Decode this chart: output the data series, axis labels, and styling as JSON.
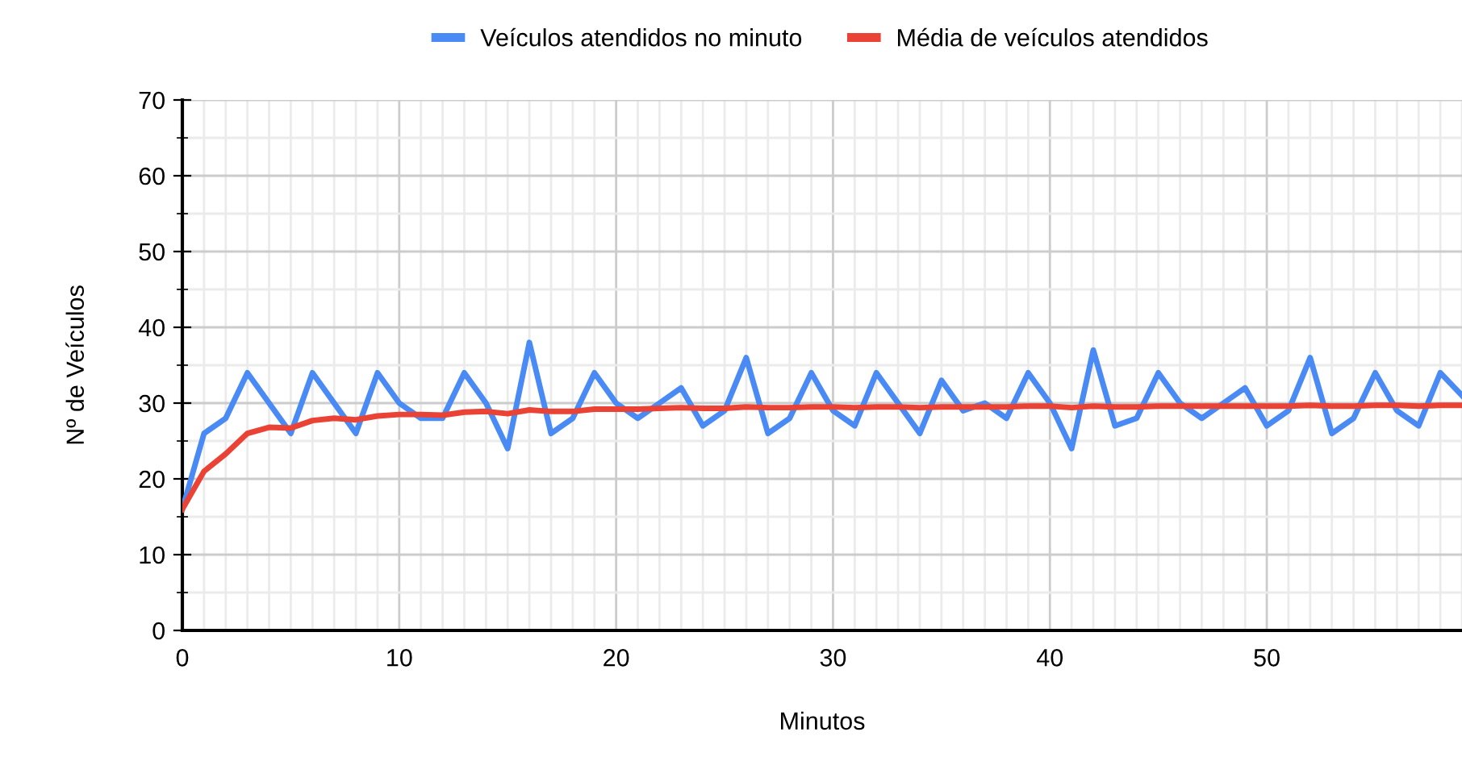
{
  "chart_data": {
    "type": "line",
    "xlabel": "Minutos",
    "ylabel": "Nº de Veículos",
    "x": [
      0,
      1,
      2,
      3,
      4,
      5,
      6,
      7,
      8,
      9,
      10,
      11,
      12,
      13,
      14,
      15,
      16,
      17,
      18,
      19,
      20,
      21,
      22,
      23,
      24,
      25,
      26,
      27,
      28,
      29,
      30,
      31,
      32,
      33,
      34,
      35,
      36,
      37,
      38,
      39,
      40,
      41,
      42,
      43,
      44,
      45,
      46,
      47,
      48,
      49,
      50,
      51,
      52,
      53,
      54,
      55,
      56,
      57,
      58,
      59
    ],
    "series": [
      {
        "name": "Veículos atendidos no minuto",
        "color": "#4a8af4",
        "values": [
          16,
          26,
          28,
          34,
          30,
          26,
          34,
          30,
          26,
          34,
          30,
          28,
          28,
          34,
          30,
          24,
          38,
          26,
          28,
          34,
          30,
          28,
          30,
          32,
          27,
          29,
          36,
          26,
          28,
          34,
          29,
          27,
          34,
          30,
          26,
          33,
          29,
          30,
          28,
          34,
          30,
          24,
          37,
          27,
          28,
          34,
          30,
          28,
          30,
          32,
          27,
          29,
          36,
          26,
          28,
          34,
          29,
          27,
          34,
          31
        ]
      },
      {
        "name": "Média de veículos atendidos",
        "color": "#ea4335",
        "values": [
          16,
          21,
          23.3,
          26,
          26.8,
          26.7,
          27.7,
          28,
          27.8,
          28.3,
          28.5,
          28.5,
          28.4,
          28.8,
          28.9,
          28.6,
          29.1,
          28.9,
          28.9,
          29.2,
          29.2,
          29.2,
          29.3,
          29.4,
          29.3,
          29.3,
          29.5,
          29.4,
          29.4,
          29.5,
          29.5,
          29.4,
          29.5,
          29.5,
          29.4,
          29.5,
          29.5,
          29.5,
          29.5,
          29.6,
          29.6,
          29.4,
          29.6,
          29.5,
          29.5,
          29.6,
          29.6,
          29.6,
          29.6,
          29.6,
          29.6,
          29.6,
          29.7,
          29.6,
          29.6,
          29.7,
          29.7,
          29.6,
          29.7,
          29.7
        ]
      }
    ],
    "xlim": [
      0,
      59
    ],
    "ylim": [
      0,
      70
    ],
    "xticks": [
      0,
      10,
      20,
      30,
      40,
      50
    ],
    "yticks": [
      0,
      10,
      20,
      30,
      40,
      50,
      60,
      70
    ],
    "grid": true,
    "legend": "top",
    "marker": "none",
    "line_style": "solid"
  }
}
